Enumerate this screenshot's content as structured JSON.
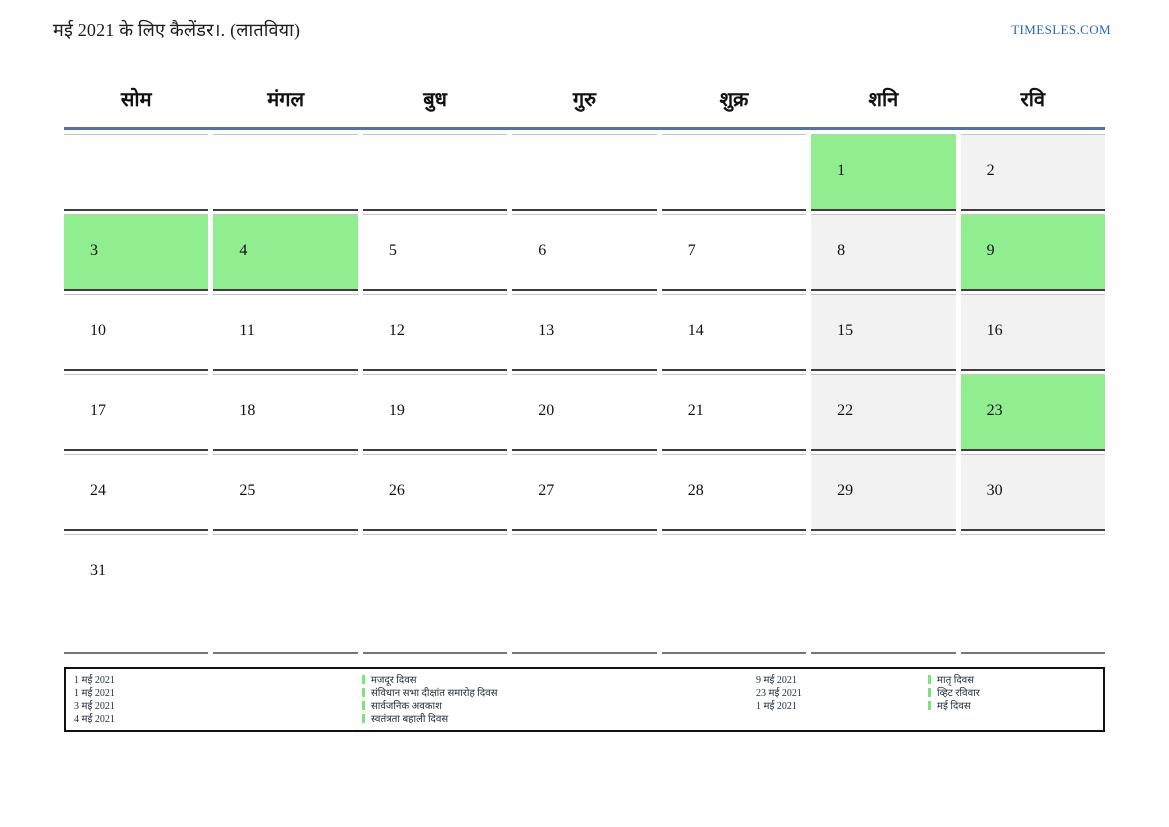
{
  "page": {
    "title": "मई 2021 के लिए कैलेंडर।. (लातविया)",
    "brand": "TIMESLES.COM"
  },
  "calendar": {
    "weekday_headers": [
      "सोम",
      "मंगल",
      "बुध",
      "गुरु",
      "शुक्र",
      "शनि",
      "रवि"
    ],
    "weeks": [
      [
        "",
        "",
        "",
        "",
        "",
        "1",
        "2"
      ],
      [
        "3",
        "4",
        "5",
        "6",
        "7",
        "8",
        "9"
      ],
      [
        "10",
        "11",
        "12",
        "13",
        "14",
        "15",
        "16"
      ],
      [
        "17",
        "18",
        "19",
        "20",
        "21",
        "22",
        "23"
      ],
      [
        "24",
        "25",
        "26",
        "27",
        "28",
        "29",
        "30"
      ],
      [
        "31",
        "",
        "",
        "",
        "",
        "",
        ""
      ]
    ],
    "holiday_green_days": [
      "1",
      "3",
      "4",
      "9",
      "23"
    ],
    "weekend_gray_days": [
      "2",
      "8",
      "15",
      "16",
      "22",
      "29",
      "30"
    ]
  },
  "legend": {
    "groups": [
      {
        "entries": [
          {
            "date": "1 मई 2021",
            "name": "मजदूर दिवस"
          },
          {
            "date": "1 मई 2021",
            "name": "संविधान सभा दीक्षांत समारोह दिवस"
          },
          {
            "date": "3 मई 2021",
            "name": "सार्वजनिक अवकाश"
          },
          {
            "date": "4 मई 2021",
            "name": "स्वतंत्रता बहाली दिवस"
          }
        ]
      },
      {
        "entries": [
          {
            "date": "9 मई 2021",
            "name": "मातृ दिवस"
          },
          {
            "date": "23 मई 2021",
            "name": "व्हिट रविवार"
          },
          {
            "date": "1 मई 2021",
            "name": "मई दिवस"
          }
        ]
      }
    ]
  },
  "colors": {
    "holiday_green": "#90EE90",
    "weekend_gray": "#F2F2F2",
    "header_line_blue": "#54749E",
    "brand_blue": "#2766B0",
    "legend_marker_green": "#7DE37D"
  }
}
